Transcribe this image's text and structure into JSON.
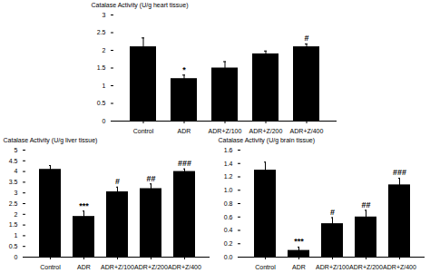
{
  "chart_data": [
    {
      "type": "bar",
      "categories": [
        "Control",
        "ADR",
        "ADR+Z/100",
        "ADR+Z/200",
        "ADR+Z/400"
      ],
      "values": [
        2.1,
        1.2,
        1.5,
        1.9,
        2.1
      ],
      "errors": [
        0.25,
        0.1,
        0.18,
        0.08,
        0.08
      ],
      "ylabel": "Catalase Activity (U/g heart tissue)",
      "ylim": [
        0,
        3
      ],
      "yticks": [
        0,
        0.5,
        1,
        1.5,
        2,
        2.5,
        3
      ],
      "annotations": [
        null,
        "*",
        null,
        null,
        "#"
      ],
      "grid": false
    },
    {
      "type": "bar",
      "categories": [
        "Control",
        "ADR",
        "ADR+Z/100",
        "ADR+Z/200",
        "ADR+Z/400"
      ],
      "values": [
        4.1,
        1.9,
        3.05,
        3.2,
        4.0
      ],
      "errors": [
        0.18,
        0.25,
        0.22,
        0.22,
        0.12
      ],
      "ylabel": "Catalase Activity (U/g liver tissue)",
      "ylim": [
        0,
        5
      ],
      "yticks": [
        0,
        0.5,
        1,
        1.5,
        2,
        2.5,
        3,
        3.5,
        4,
        4.5,
        5
      ],
      "annotations": [
        null,
        "***",
        "#",
        "##",
        "###"
      ],
      "grid": false
    },
    {
      "type": "bar",
      "categories": [
        "Control",
        "ADR",
        "ADR+Z/100",
        "ADR+Z/200",
        "ADR+Z/400"
      ],
      "values": [
        1.3,
        0.1,
        0.5,
        0.6,
        1.08
      ],
      "errors": [
        0.12,
        0.05,
        0.09,
        0.1,
        0.1
      ],
      "ylabel": "Catalase Activity (U/g brain tissue)",
      "ylim": [
        0,
        1.6
      ],
      "yticks": [
        {
          "value": 0,
          "label": "0.0"
        },
        0.2,
        0.4,
        0.6,
        0.8,
        {
          "value": 1,
          "label": "1.0"
        },
        1.2,
        1.4,
        1.6
      ],
      "annotations": [
        null,
        "***",
        "#",
        "##",
        "###"
      ],
      "grid": false
    }
  ]
}
